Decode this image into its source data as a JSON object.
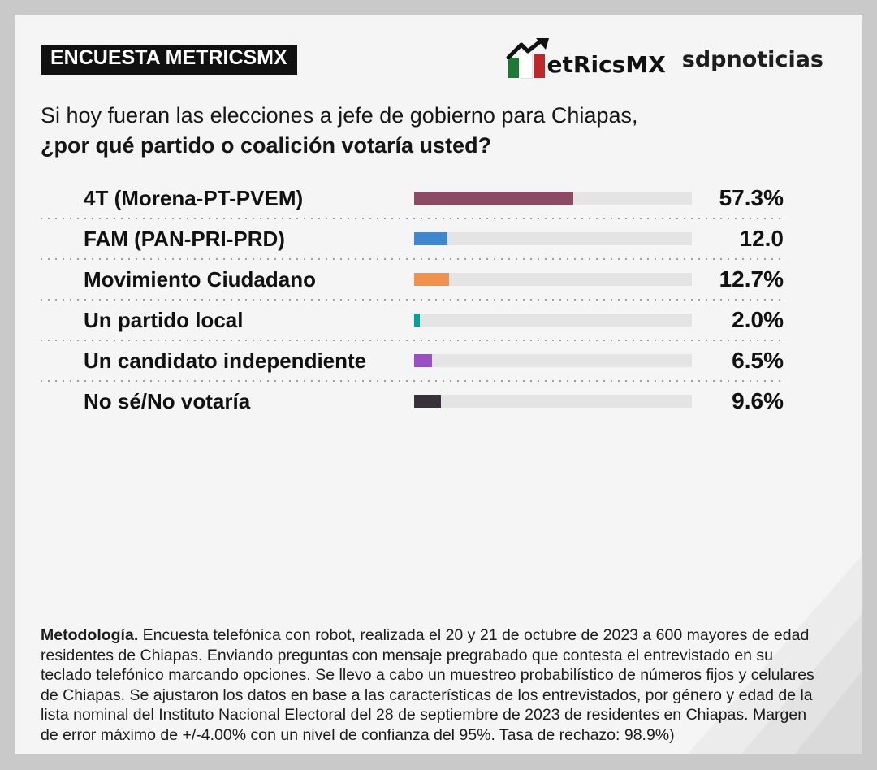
{
  "page": {
    "outer_bg": "#c9c9c9",
    "card_bg": "#f5f5f5"
  },
  "header": {
    "badge": "ENCUESTA METRICSMX",
    "brand": {
      "logo_text": "etRicsMX",
      "partner": "sdpnoticias",
      "flag_green": "#1d7a35",
      "flag_red": "#c22629"
    }
  },
  "question": {
    "line1": "Si hoy fueran las elecciones a jefe de gobierno para Chiapas,",
    "line2": "¿por qué partido o coalición votaría usted?"
  },
  "chart_data": {
    "type": "bar",
    "orientation": "horizontal",
    "title": "Si hoy fueran las elecciones a jefe de gobierno para Chiapas, ¿por qué partido o coalición votaría usted?",
    "xlabel": "",
    "ylabel": "",
    "xlim": [
      0,
      100
    ],
    "grid": false,
    "legend": "none",
    "track_color": "#e4e4e4",
    "categories": [
      "4T (Morena-PT-PVEM)",
      "FAM (PAN-PRI-PRD)",
      "Movimiento Ciudadano",
      "Un partido local",
      "Un candidato independiente",
      "No sé/No votaría"
    ],
    "values": [
      57.3,
      12.0,
      12.7,
      2.0,
      6.5,
      9.6
    ],
    "bars": [
      {
        "label": "4T (Morena-PT-PVEM)",
        "value": 57.3,
        "display": "57.3%",
        "color": "#8d4a64"
      },
      {
        "label": "FAM (PAN-PRI-PRD)",
        "value": 12.0,
        "display": "12.0",
        "color": "#3c87cf"
      },
      {
        "label": "Movimiento Ciudadano",
        "value": 12.7,
        "display": "12.7%",
        "color": "#f0914e"
      },
      {
        "label": "Un partido local",
        "value": 2.0,
        "display": "2.0%",
        "color": "#00a29a"
      },
      {
        "label": "Un candidato independiente",
        "value": 6.5,
        "display": "6.5%",
        "color": "#9a50c4"
      },
      {
        "label": "No sé/No votaría",
        "value": 9.6,
        "display": "9.6%",
        "color": "#37313a"
      }
    ]
  },
  "footer": {
    "methodology_label": "Metodología.",
    "methodology_text": " Encuesta telefónica con robot, realizada el 20 y 21 de octubre de 2023 a 600 mayores de edad residentes de Chiapas. Enviando preguntas con mensaje pregrabado que contesta el entrevistado en su teclado telefónico marcando opciones. Se llevo a cabo un muestreo probabilístico de números fijos y celulares de Chiapas. Se ajustaron los datos en base a las características de los entrevistados, por género y edad de la lista nominal del Instituto Nacional Electoral del 28 de septiembre de 2023 de residentes en Chiapas. Margen de error máximo de +/-4.00% con un nivel de confianza del 95%. Tasa de rechazo: 98.9%)"
  }
}
